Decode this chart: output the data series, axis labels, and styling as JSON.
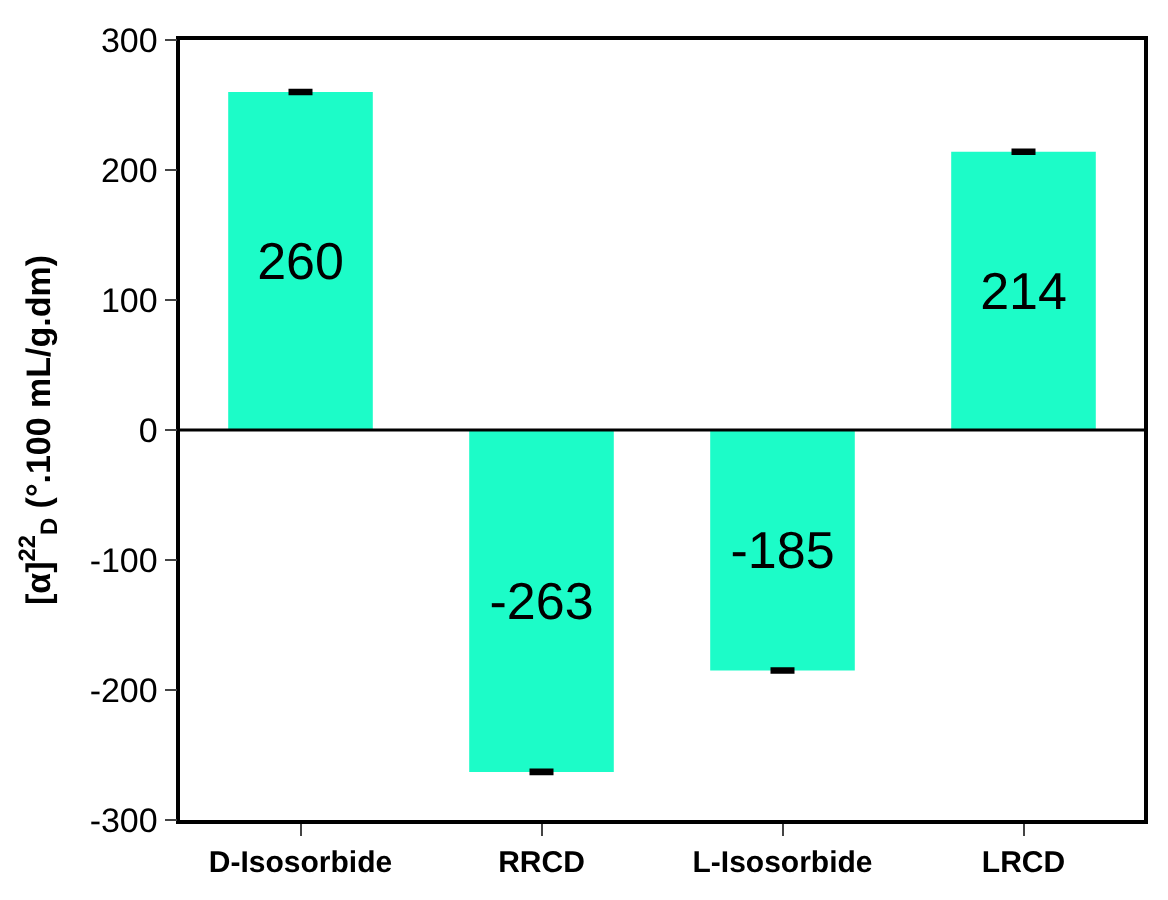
{
  "chart_data": {
    "type": "bar",
    "ylabel": "[α]$^{22}$$_{D}$ (°.100 mL/g.dm)",
    "categories": [
      "D-Isosorbide",
      "RRCD",
      "L-Isosorbide",
      "LRCD"
    ],
    "values": [
      260,
      -263,
      -185,
      214
    ],
    "errors": [
      1,
      1,
      1,
      1
    ],
    "color": "#1cfcc8",
    "ylim": [
      -300,
      300
    ],
    "yticks": [
      -300,
      -200,
      -100,
      0,
      100,
      200,
      300
    ],
    "ref_lines": [
      {
        "axis": "y",
        "value": 0,
        "color": "#000000"
      }
    ],
    "data_labels": true
  }
}
